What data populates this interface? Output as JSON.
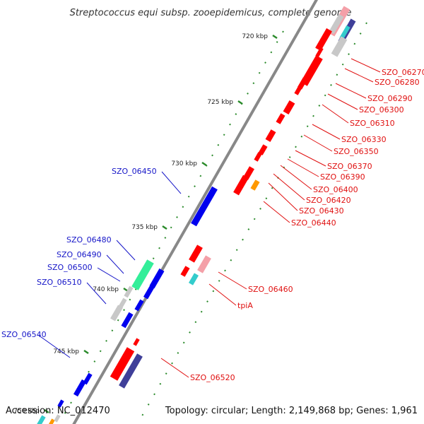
{
  "title": "Streptococcus equi subsp. zooepidemicus, complete genome",
  "footer": {
    "accession": "Accession: NC_012470",
    "topology": "Topology: circular; Length: 2,149,868 bp; Genes: 1,961"
  },
  "colors": {
    "backbone": "#888888",
    "tick": "#2a8a2a",
    "forward_label": "#1515c8",
    "reverse_label": "#e01010",
    "gene_red": "#ff0000",
    "gene_pink": "#f4a0a8",
    "gene_blue": "#0000ee",
    "gene_navy": "#3f3f99",
    "gene_cyan": "#33cccc",
    "gene_mint": "#33ee99",
    "gene_gray": "#c8c8c8",
    "gene_orange": "#ff9900"
  },
  "tick_labels": [
    "720 kbp",
    "725 kbp",
    "730 kbp",
    "735 kbp",
    "740 kbp",
    "745 kbp",
    "750 kbp"
  ],
  "forward_genes": [
    "SZO_06450",
    "SZO_06480",
    "SZO_06490",
    "SZO_06500",
    "SZO_06510",
    "SZO_06540"
  ],
  "reverse_genes": [
    "SZO_06270",
    "SZO_06280",
    "SZO_06290",
    "SZO_06300",
    "SZO_06310",
    "SZO_06330",
    "SZO_06350",
    "SZO_06370",
    "SZO_06390",
    "SZO_06400",
    "SZO_06420",
    "SZO_06430",
    "SZO_06440",
    "SZO_06460",
    "tpiA",
    "SZO_06520"
  ]
}
